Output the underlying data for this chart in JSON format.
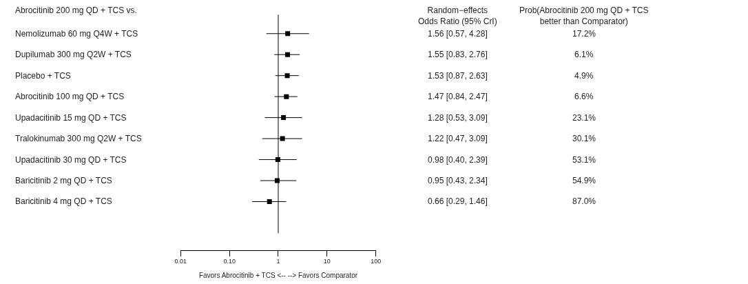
{
  "chart_data": {
    "type": "scatter",
    "orientation": "horizontal",
    "title": "Abrocitinib 200 mg QD + TCS vs.",
    "xlabel": "Favors Abrocitinib + TCS <-- --> Favors Comparator",
    "categories": [
      "Nemolizumab 60 mg Q4W + TCS",
      "Dupilumab 300 mg Q2W + TCS",
      "Placebo + TCS",
      "Abrocitinib 100 mg QD + TCS",
      "Upadacitinib 15 mg QD + TCS",
      "Tralokinumab 300 mg Q2W + TCS",
      "Upadacitinib 30 mg QD + TCS",
      "Baricitinib 2 mg QD + TCS",
      "Baricitinib 4 mg QD + TCS"
    ],
    "series": [
      {
        "color": "#000000",
        "values": [
          1.56,
          1.55,
          1.53,
          1.47,
          1.28,
          1.22,
          0.98,
          0.95,
          0.66
        ],
        "errors": [
          [
            0.57,
            4.28
          ],
          [
            0.83,
            2.76
          ],
          [
            0.87,
            2.63
          ],
          [
            0.84,
            2.47
          ],
          [
            0.53,
            3.09
          ],
          [
            0.47,
            3.09
          ],
          [
            0.4,
            2.39
          ],
          [
            0.43,
            2.34
          ],
          [
            0.29,
            1.46
          ]
        ],
        "value_labels": [
          "1.56 [0.57, 4.28]",
          "1.55 [0.83, 2.76]",
          "1.53 [0.87, 2.63]",
          "1.47 [0.84, 2.47]",
          "1.28 [0.53, 3.09]",
          "1.22 [0.47, 3.09]",
          "0.98 [0.40, 2.39]",
          "0.95 [0.43, 2.34]",
          "0.66 [0.29, 1.46]"
        ]
      }
    ],
    "annotations": [
      "Random−effects\nOdds Ratio (95% CrI)",
      "Prob(Abrocitinib 200 mg QD + TCS\nbetter than Comparator)",
      "17.2%",
      "6.1%",
      "4.9%",
      "6.6%",
      "23.1%",
      "30.1%",
      "53.1%",
      "54.9%",
      "87.0%"
    ],
    "log": "x",
    "xlim": [
      0.01,
      100
    ],
    "xticks": [
      {
        "value": 0.01,
        "label": "0.01"
      },
      {
        "value": 0.1,
        "label": "0.10"
      },
      1,
      10,
      100
    ],
    "ref_lines": [
      {
        "axis": "x",
        "value": 1,
        "color": "#000000"
      }
    ],
    "marker": "square",
    "legend": false
  }
}
